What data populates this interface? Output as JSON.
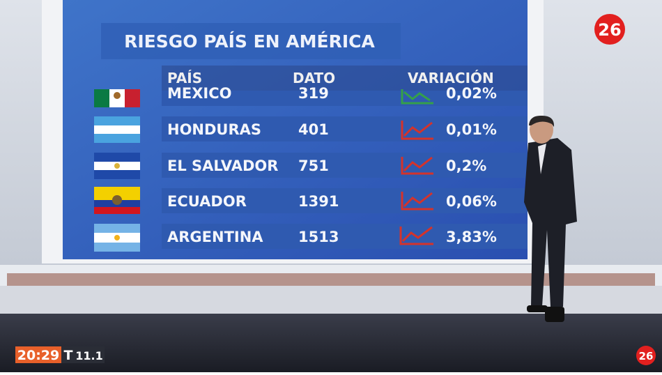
{
  "screen": {
    "title": "RIESGO PAÍS EN AMÉRICA",
    "headers": [
      "PAÍS",
      "DATO",
      "VARIACIÓN"
    ],
    "rows": [
      [
        "MEXICO",
        "319",
        "0,02%"
      ],
      [
        "HONDURAS",
        "401",
        "0,01%"
      ],
      [
        "EL SALVADOR",
        "751",
        "0,2%"
      ],
      [
        "ECUADOR",
        "1391",
        "0,06%"
      ],
      [
        "ARGENTINA",
        "1513",
        "3,83%"
      ]
    ]
  },
  "channel": {
    "logo": "26"
  },
  "ticker": {
    "time": "20:29",
    "label": "T",
    "value": "11.1"
  }
}
